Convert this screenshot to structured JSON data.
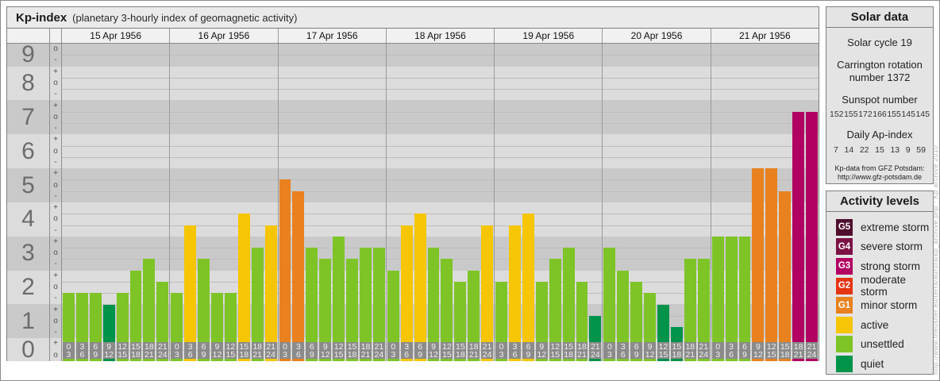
{
  "title": {
    "main": "Kp-index",
    "subtitle": "(planetary 3-hourly index of geomagnetic activity)"
  },
  "watermark": "http://www.theusner.eu/terra/aurora/kp_archive.php · Kp archive 2010",
  "axis": {
    "numbers": [
      "9",
      "8",
      "7",
      "6",
      "5",
      "4",
      "3",
      "2",
      "1",
      "0"
    ],
    "band_rows": [
      2,
      3,
      3,
      3,
      3,
      3,
      3,
      3,
      3,
      2
    ],
    "signs": [
      [
        "o",
        "-"
      ],
      [
        "+",
        "o",
        "-"
      ],
      [
        "+",
        "o",
        "-"
      ],
      [
        "+",
        "o",
        "-"
      ],
      [
        "+",
        "o",
        "-"
      ],
      [
        "+",
        "o",
        "-"
      ],
      [
        "+",
        "o",
        "-"
      ],
      [
        "+",
        "o",
        "-"
      ],
      [
        "+",
        "o",
        "-"
      ],
      [
        "+",
        "o"
      ]
    ],
    "intervals": [
      [
        "0",
        "3"
      ],
      [
        "3",
        "6"
      ],
      [
        "6",
        "9"
      ],
      [
        "9",
        "12"
      ],
      [
        "12",
        "15"
      ],
      [
        "15",
        "18"
      ],
      [
        "18",
        "21"
      ],
      [
        "21",
        "24"
      ]
    ]
  },
  "levels": {
    "quiet": "#00934a",
    "unsettled": "#7ec427",
    "active": "#f6c605",
    "G1": "#e8811e",
    "G2": "#e63312",
    "G3": "#b10062",
    "G4": "#7c1144",
    "G5": "#4f0e2d"
  },
  "chart_data": {
    "type": "bar",
    "title": "Kp-index (planetary 3-hourly index of geomagnetic activity)",
    "ylabel": "Kp",
    "ylim": [
      0,
      9
    ],
    "x_intervals_hours": [
      "0-3",
      "3-6",
      "6-9",
      "9-12",
      "12-15",
      "15-18",
      "18-21",
      "21-24"
    ],
    "legend_position": "right",
    "days": [
      {
        "date": "15 Apr 1956",
        "kp": [
          "2-",
          "2-",
          "2-",
          "1+",
          "2-",
          "2+",
          "3-",
          "2o"
        ]
      },
      {
        "date": "16 Apr 1956",
        "kp": [
          "2-",
          "4-",
          "3-",
          "2-",
          "2-",
          "4o",
          "3o",
          "4-"
        ]
      },
      {
        "date": "17 Apr 1956",
        "kp": [
          "5o",
          "5-",
          "3o",
          "3-",
          "3+",
          "3-",
          "3o",
          "3o"
        ]
      },
      {
        "date": "18 Apr 1956",
        "kp": [
          "2+",
          "4-",
          "4o",
          "3o",
          "3-",
          "2o",
          "2+",
          "4-"
        ]
      },
      {
        "date": "19 Apr 1956",
        "kp": [
          "2o",
          "4-",
          "4o",
          "2o",
          "3-",
          "3o",
          "2o",
          "1o"
        ]
      },
      {
        "date": "20 Apr 1956",
        "kp": [
          "3o",
          "2+",
          "2o",
          "2-",
          "1+",
          "1-",
          "3-",
          "3-"
        ]
      },
      {
        "date": "21 Apr 1956",
        "kp": [
          "3+",
          "3+",
          "3+",
          "5+",
          "5+",
          "5-",
          "7o",
          "7o"
        ]
      }
    ]
  },
  "solar_panel": {
    "header": "Solar data",
    "cycle": "Solar cycle 19",
    "carrington_line1": "Carrington rotation",
    "carrington_line2": "number 1372",
    "sunspot_label": "Sunspot number",
    "sunspot_values": [
      "152",
      "155",
      "172",
      "166",
      "155",
      "145",
      "145"
    ],
    "ap_label": "Daily Ap-index",
    "ap_values": [
      "7",
      "14",
      "22",
      "15",
      "13",
      "9",
      "59"
    ],
    "source_line1": "Kp-data from GFZ Potsdam:",
    "source_line2": "http://www.gfz-potsdam.de"
  },
  "activity_panel": {
    "header": "Activity levels",
    "items": [
      {
        "badge": "G5",
        "label": "extreme storm"
      },
      {
        "badge": "G4",
        "label": "severe storm"
      },
      {
        "badge": "G3",
        "label": "strong storm"
      },
      {
        "badge": "G2",
        "label": "moderate storm"
      },
      {
        "badge": "G1",
        "label": "minor storm"
      },
      {
        "badge": "",
        "label": "active"
      },
      {
        "badge": "",
        "label": "unsettled"
      },
      {
        "badge": "",
        "label": "quiet"
      }
    ]
  }
}
